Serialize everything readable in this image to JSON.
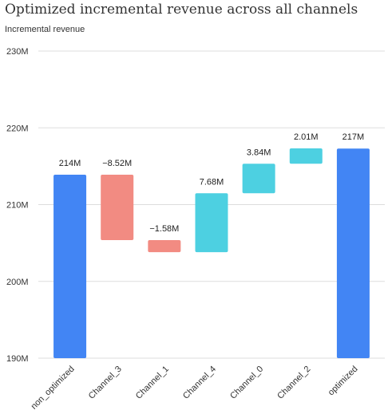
{
  "chart_data": {
    "type": "waterfall",
    "title": "Optimized incremental revenue across all channels",
    "ylabel": "Incremental revenue",
    "ylim": [
      190,
      230
    ],
    "yticks": [
      190,
      200,
      210,
      220,
      230
    ],
    "ytick_labels": [
      "190M",
      "200M",
      "210M",
      "220M",
      "230M"
    ],
    "grid": true,
    "categories": [
      "non_optimized",
      "Channel_3",
      "Channel_1",
      "Channel_4",
      "Channel_0",
      "Channel_2",
      "optimized"
    ],
    "values": [
      213.9,
      -8.52,
      -1.58,
      7.68,
      3.84,
      2.01,
      217.3
    ],
    "kinds": [
      "total",
      "delta",
      "delta",
      "delta",
      "delta",
      "delta",
      "total"
    ],
    "labels": [
      "214M",
      "−8.52M",
      "−1.58M",
      "7.68M",
      "3.84M",
      "2.01M",
      "217M"
    ],
    "colors": {
      "total": "#4285f4",
      "decrease": "#f28b82",
      "increase": "#4dd0e1"
    }
  }
}
